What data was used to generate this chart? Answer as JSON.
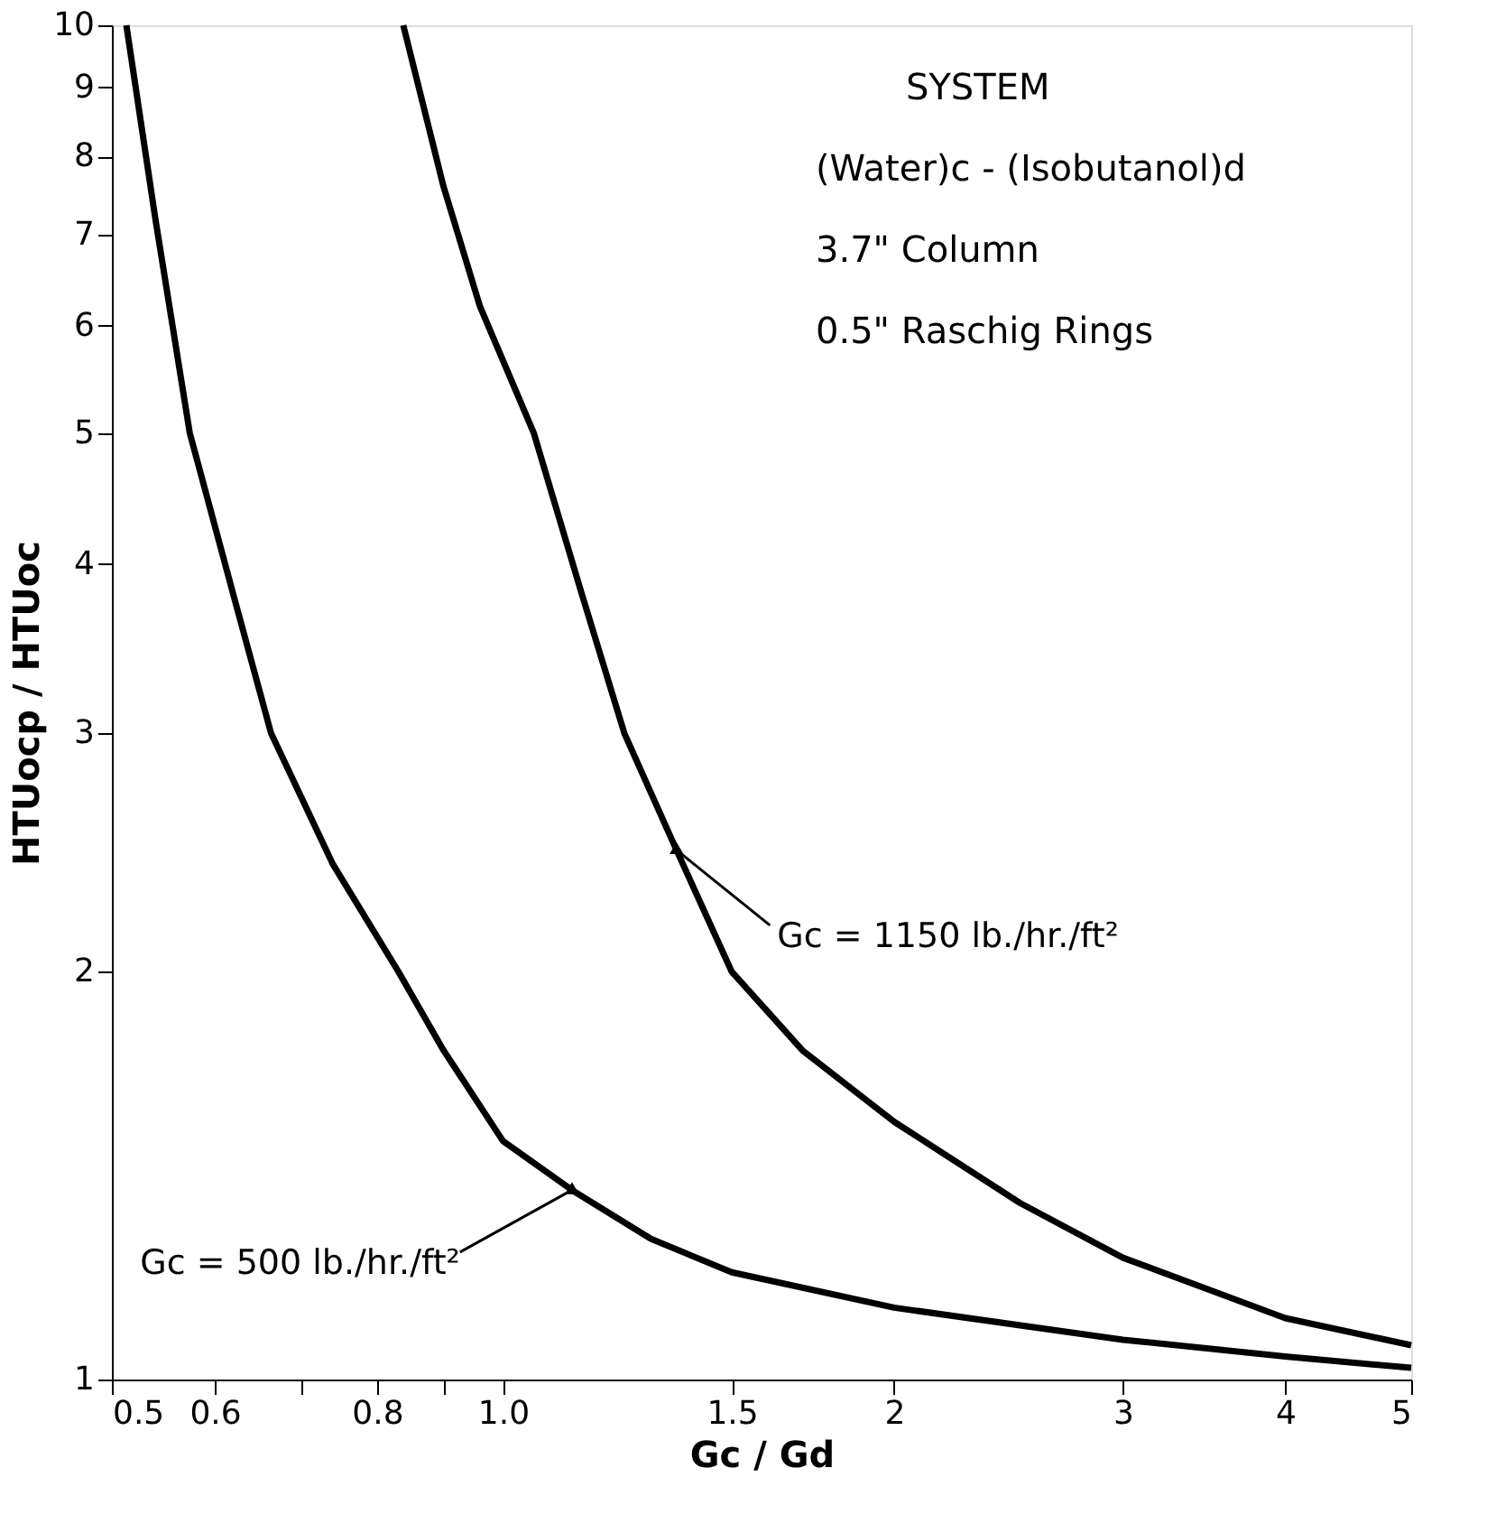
{
  "chart_data": {
    "type": "line",
    "xlabel": "Gc / Gd",
    "ylabel": "HTUocp / HTUoc",
    "log": "xy",
    "grid": false,
    "marker": "none",
    "line_style": "solid",
    "xlim": [
      0.5,
      5
    ],
    "ylim": [
      1,
      10
    ],
    "xticks": [
      0.5,
      0.6,
      {
        "value": 0.7,
        "label": null
      },
      0.8,
      {
        "value": 0.9,
        "label": null
      },
      {
        "value": 1,
        "label": "1.0"
      },
      1.5,
      2,
      3,
      4,
      5
    ],
    "yticks": [
      1,
      2,
      3,
      4,
      5,
      6,
      7,
      8,
      9,
      10
    ],
    "series": [
      {
        "color": "#000000",
        "x": [
          0.513,
          0.54,
          0.574,
          0.62,
          0.663,
          0.74,
          0.831,
          0.9,
          1.0,
          1.13,
          1.3,
          1.5,
          2.0,
          3.0,
          4.0,
          5.0
        ],
        "values": [
          10,
          7.2,
          5,
          3.8,
          3,
          2.4,
          2,
          1.75,
          1.5,
          1.38,
          1.27,
          1.2,
          1.13,
          1.07,
          1.04,
          1.02
        ]
      },
      {
        "color": "#000000",
        "x": [
          0.838,
          0.9,
          0.96,
          1.056,
          1.15,
          1.24,
          1.36,
          1.5,
          1.7,
          2.0,
          2.5,
          3.0,
          4.0,
          5.0
        ],
        "values": [
          10,
          7.6,
          6.2,
          5,
          3.8,
          3,
          2.46,
          2,
          1.75,
          1.55,
          1.35,
          1.23,
          1.11,
          1.06
        ]
      }
    ],
    "annotations": [
      "SYSTEM",
      "(Water)c - (Isobutanol)d",
      "3.7\" Column",
      "0.5\" Raschig Rings",
      {
        "text": "Gc = 1150 lb./hr./ft²",
        "x": 1.36,
        "y": 2.46
      },
      {
        "text": "Gc = 500 lb./hr./ft²",
        "x": 1.13,
        "y": 1.38
      }
    ]
  }
}
